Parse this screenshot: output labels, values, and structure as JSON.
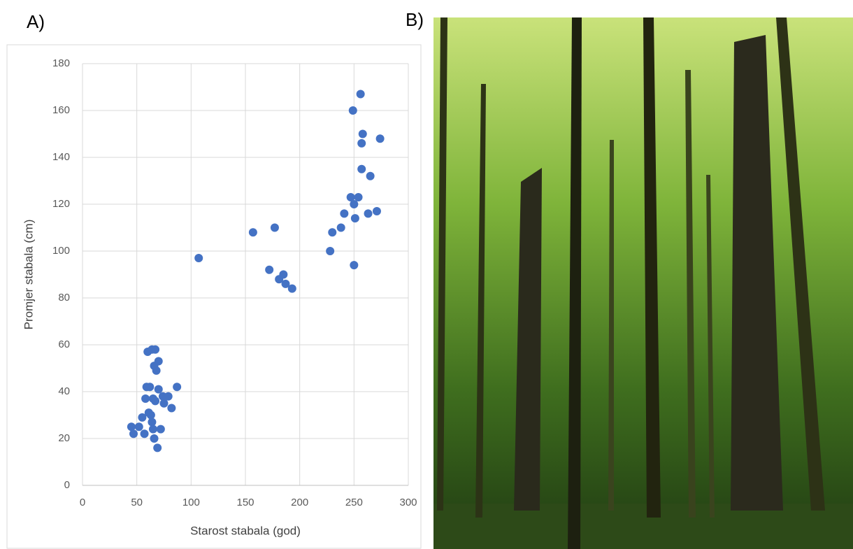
{
  "panel_labels": [
    "A)",
    "B)"
  ],
  "chart_data": {
    "type": "scatter",
    "x_label": "Starost stabala (god)",
    "y_label": "Promjer stabala (cm)",
    "color": "#4472c4",
    "grid": true,
    "xlim": [
      0,
      300
    ],
    "xticks": [
      0,
      50,
      100,
      150,
      200,
      250,
      300
    ],
    "ylim": [
      0,
      180
    ],
    "yticks": [
      0,
      20,
      40,
      60,
      80,
      100,
      120,
      140,
      160,
      180
    ],
    "x": [
      45,
      47,
      52,
      55,
      57,
      58,
      59,
      60,
      61,
      62,
      63,
      64,
      64,
      65,
      65,
      66,
      66,
      67,
      67,
      68,
      69,
      70,
      70,
      72,
      74,
      75,
      79,
      82,
      87,
      107,
      157,
      172,
      177,
      181,
      185,
      187,
      193,
      228,
      230,
      238,
      241,
      247,
      249,
      250,
      250,
      251,
      254,
      256,
      257,
      257,
      258,
      263,
      265,
      271,
      274
    ],
    "values": [
      25,
      22,
      25,
      29,
      22,
      37,
      42,
      57,
      31,
      42,
      30,
      58,
      27,
      24,
      37,
      51,
      20,
      58,
      36,
      49,
      16,
      53,
      41,
      24,
      38,
      35,
      38,
      33,
      42,
      97,
      108,
      92,
      110,
      88,
      90,
      86,
      84,
      100,
      108,
      110,
      116,
      123,
      160,
      120,
      94,
      114,
      123,
      167,
      135,
      146,
      150,
      116,
      132,
      117,
      148
    ]
  }
}
